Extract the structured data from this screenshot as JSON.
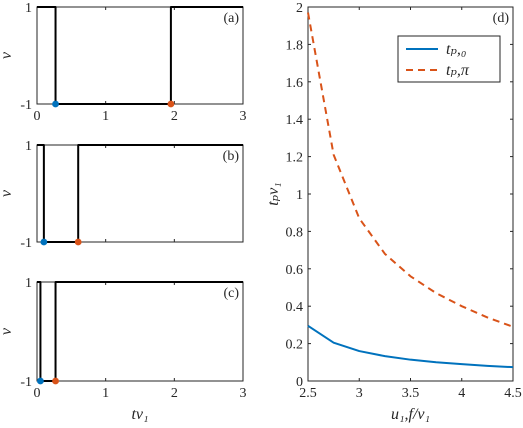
{
  "chart_data": [
    {
      "panel": "(a)",
      "type": "line",
      "ylabel": "ν",
      "xlabel": "",
      "xlim": [
        0,
        3
      ],
      "ylim": [
        -1,
        1
      ],
      "xticks": [
        "0",
        "1",
        "2",
        "3"
      ],
      "yticks": [
        "-1",
        "1"
      ],
      "series": [
        {
          "x": [
            0,
            0.27,
            0.27,
            1.95,
            1.95,
            3
          ],
          "y": [
            1,
            1,
            -1,
            -1,
            1,
            1
          ]
        }
      ],
      "markers": [
        {
          "x": 0.27,
          "y": -1,
          "color": "#0072BD"
        },
        {
          "x": 1.95,
          "y": -1,
          "color": "#D95319"
        }
      ]
    },
    {
      "panel": "(b)",
      "type": "line",
      "ylabel": "ν",
      "xlabel": "",
      "xlim": [
        0,
        3
      ],
      "ylim": [
        -1,
        1
      ],
      "xticks": [],
      "yticks": [
        "-1",
        "1"
      ],
      "series": [
        {
          "x": [
            0,
            0.1,
            0.1,
            0.6,
            0.6,
            3
          ],
          "y": [
            1,
            1,
            -1,
            -1,
            1,
            1
          ]
        }
      ],
      "markers": [
        {
          "x": 0.1,
          "y": -1,
          "color": "#0072BD"
        },
        {
          "x": 0.6,
          "y": -1,
          "color": "#D95319"
        }
      ]
    },
    {
      "panel": "(c)",
      "type": "line",
      "ylabel": "ν",
      "xlabel": "tν₁",
      "xlim": [
        0,
        3
      ],
      "ylim": [
        -1,
        1
      ],
      "xticks": [
        "0",
        "1",
        "2",
        "3"
      ],
      "yticks": [
        "-1",
        "1"
      ],
      "series": [
        {
          "x": [
            0,
            0.05,
            0.05,
            0.27,
            0.27,
            3
          ],
          "y": [
            1,
            1,
            -1,
            -1,
            1,
            1
          ]
        }
      ],
      "markers": [
        {
          "x": 0.05,
          "y": -1,
          "color": "#0072BD"
        },
        {
          "x": 0.27,
          "y": -1,
          "color": "#D95319"
        }
      ]
    },
    {
      "panel": "(d)",
      "type": "line",
      "xlabel": "u₁,f/ν₁",
      "ylabel": "tₚν₁",
      "xlim": [
        2.5,
        4.5
      ],
      "ylim": [
        0,
        2
      ],
      "xticks": [
        "2.5",
        "3",
        "3.5",
        "4",
        "4.5"
      ],
      "yticks": [
        "0",
        "0.2",
        "0.4",
        "0.6",
        "0.8",
        "1",
        "1.2",
        "1.4",
        "1.6",
        "1.8",
        "2"
      ],
      "legend_position": "top-right",
      "series": [
        {
          "name": "tₚ,₀",
          "color": "#0072BD",
          "style": "solid",
          "x": [
            2.5,
            2.75,
            3.0,
            3.25,
            3.5,
            3.75,
            4.0,
            4.25,
            4.5
          ],
          "y": [
            0.295,
            0.205,
            0.16,
            0.133,
            0.114,
            0.1,
            0.09,
            0.081,
            0.074
          ]
        },
        {
          "name": "tₚ,π",
          "color": "#D95319",
          "style": "dashed",
          "x": [
            2.5,
            2.75,
            3.0,
            3.25,
            3.5,
            3.75,
            4.0,
            4.25,
            4.5
          ],
          "y": [
            1.97,
            1.21,
            0.87,
            0.68,
            0.56,
            0.47,
            0.4,
            0.34,
            0.29
          ]
        }
      ]
    }
  ]
}
